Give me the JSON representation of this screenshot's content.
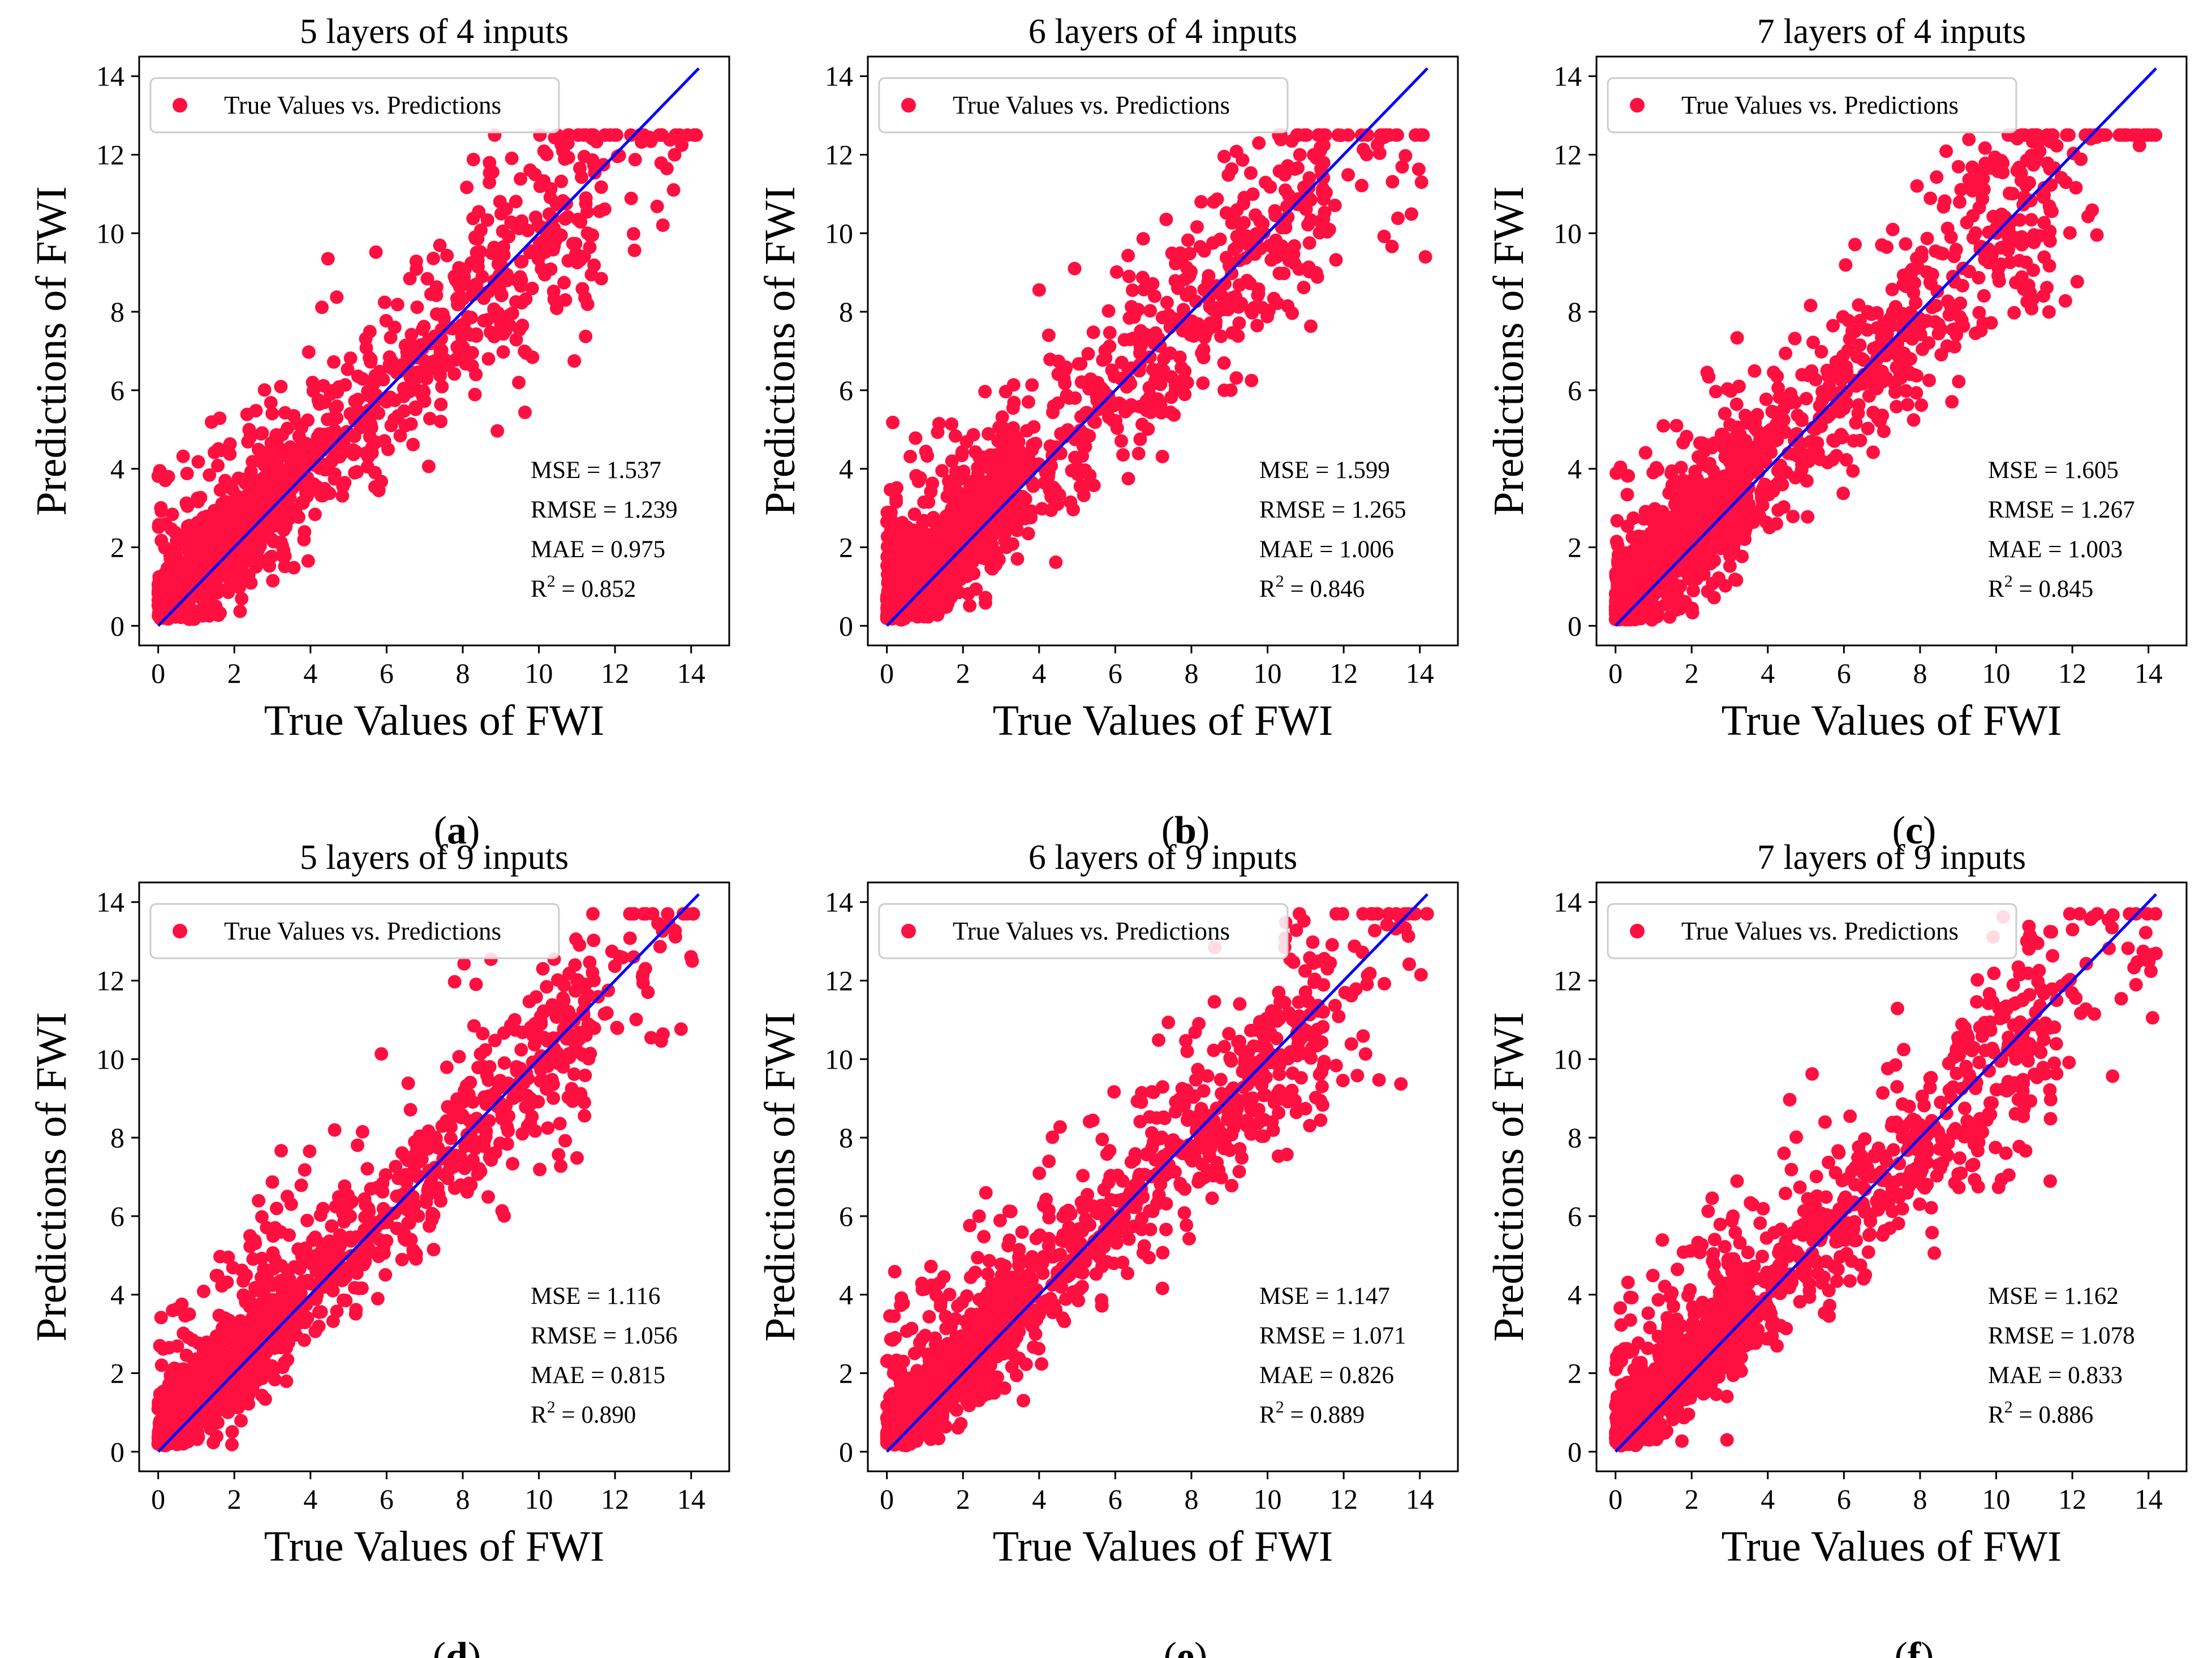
{
  "figure": {
    "marker_color": "#ff1041",
    "line_color": "#0000ff",
    "legend_label": "True Values vs. Predictions",
    "x_ticks": [
      0,
      2,
      4,
      6,
      8,
      10,
      12,
      14
    ],
    "y_ticks": [
      0,
      2,
      4,
      6,
      8,
      10,
      12,
      14
    ]
  },
  "chart_data": [
    {
      "type": "scatter",
      "panel": "a",
      "title": "5 layers of 4 inputs",
      "xlabel": "True Values of FWI",
      "ylabel": "Predictions of FWI",
      "xlim": [
        -0.5,
        15
      ],
      "ylim": [
        -0.5,
        14.5
      ],
      "series": [
        {
          "name": "True Values vs. Predictions"
        }
      ],
      "reference_line": {
        "x": [
          0,
          14.2
        ],
        "y": [
          0,
          14.2
        ]
      },
      "stats": {
        "mse": "MSE = 1.537",
        "rmse": "RMSE = 1.239",
        "mae": "MAE = 0.975",
        "r2": "0.852"
      },
      "max_prediction": 12.5,
      "spread": 1.25
    },
    {
      "type": "scatter",
      "panel": "b",
      "title": "6 layers of 4 inputs",
      "xlabel": "True Values of FWI",
      "ylabel": "Predictions of FWI",
      "xlim": [
        -0.5,
        15
      ],
      "ylim": [
        -0.5,
        14.5
      ],
      "series": [
        {
          "name": "True Values vs. Predictions"
        }
      ],
      "reference_line": {
        "x": [
          0,
          14.2
        ],
        "y": [
          0,
          14.2
        ]
      },
      "stats": {
        "mse": "MSE = 1.599",
        "rmse": "RMSE = 1.265",
        "mae": "MAE = 1.006",
        "r2": "0.846"
      },
      "max_prediction": 12.5,
      "spread": 1.3
    },
    {
      "type": "scatter",
      "panel": "c",
      "title": "7 layers of 4 inputs",
      "xlabel": "True Values of FWI",
      "ylabel": "Predictions of FWI",
      "xlim": [
        -0.5,
        15
      ],
      "ylim": [
        -0.5,
        14.5
      ],
      "series": [
        {
          "name": "True Values vs. Predictions"
        }
      ],
      "reference_line": {
        "x": [
          0,
          14.2
        ],
        "y": [
          0,
          14.2
        ]
      },
      "stats": {
        "mse": "MSE = 1.605",
        "rmse": "RMSE = 1.267",
        "mae": "MAE = 1.003",
        "r2": "0.845"
      },
      "max_prediction": 12.5,
      "spread": 1.3
    },
    {
      "type": "scatter",
      "panel": "d",
      "title": "5 layers of 9 inputs",
      "xlabel": "True Values of FWI",
      "ylabel": "Predictions of FWI",
      "xlim": [
        -0.5,
        15
      ],
      "ylim": [
        -0.5,
        14.5
      ],
      "series": [
        {
          "name": "True Values vs. Predictions"
        }
      ],
      "reference_line": {
        "x": [
          0,
          14.2
        ],
        "y": [
          0,
          14.2
        ]
      },
      "stats": {
        "mse": "MSE = 1.116",
        "rmse": "RMSE = 1.056",
        "mae": "MAE = 0.815",
        "r2": "0.890"
      },
      "max_prediction": 13.7,
      "spread": 1.05
    },
    {
      "type": "scatter",
      "panel": "e",
      "title": "6 layers of 9 inputs",
      "xlabel": "True Values of FWI",
      "ylabel": "Predictions of FWI",
      "xlim": [
        -0.5,
        15
      ],
      "ylim": [
        -0.5,
        14.5
      ],
      "series": [
        {
          "name": "True Values vs. Predictions"
        }
      ],
      "reference_line": {
        "x": [
          0,
          14.2
        ],
        "y": [
          0,
          14.2
        ]
      },
      "stats": {
        "mse": "MSE = 1.147",
        "rmse": "RMSE = 1.071",
        "mae": "MAE = 0.826",
        "r2": "0.889"
      },
      "max_prediction": 13.7,
      "spread": 1.07
    },
    {
      "type": "scatter",
      "panel": "f",
      "title": "7 layers of 9 inputs",
      "xlabel": "True Values of FWI",
      "ylabel": "Predictions of FWI",
      "xlim": [
        -0.5,
        15
      ],
      "ylim": [
        -0.5,
        14.5
      ],
      "series": [
        {
          "name": "True Values vs. Predictions"
        }
      ],
      "reference_line": {
        "x": [
          0,
          14.2
        ],
        "y": [
          0,
          14.2
        ]
      },
      "stats": {
        "mse": "MSE = 1.162",
        "rmse": "RMSE = 1.078",
        "mae": "MAE = 0.833",
        "r2": "0.886"
      },
      "max_prediction": 13.7,
      "spread": 1.08
    }
  ]
}
